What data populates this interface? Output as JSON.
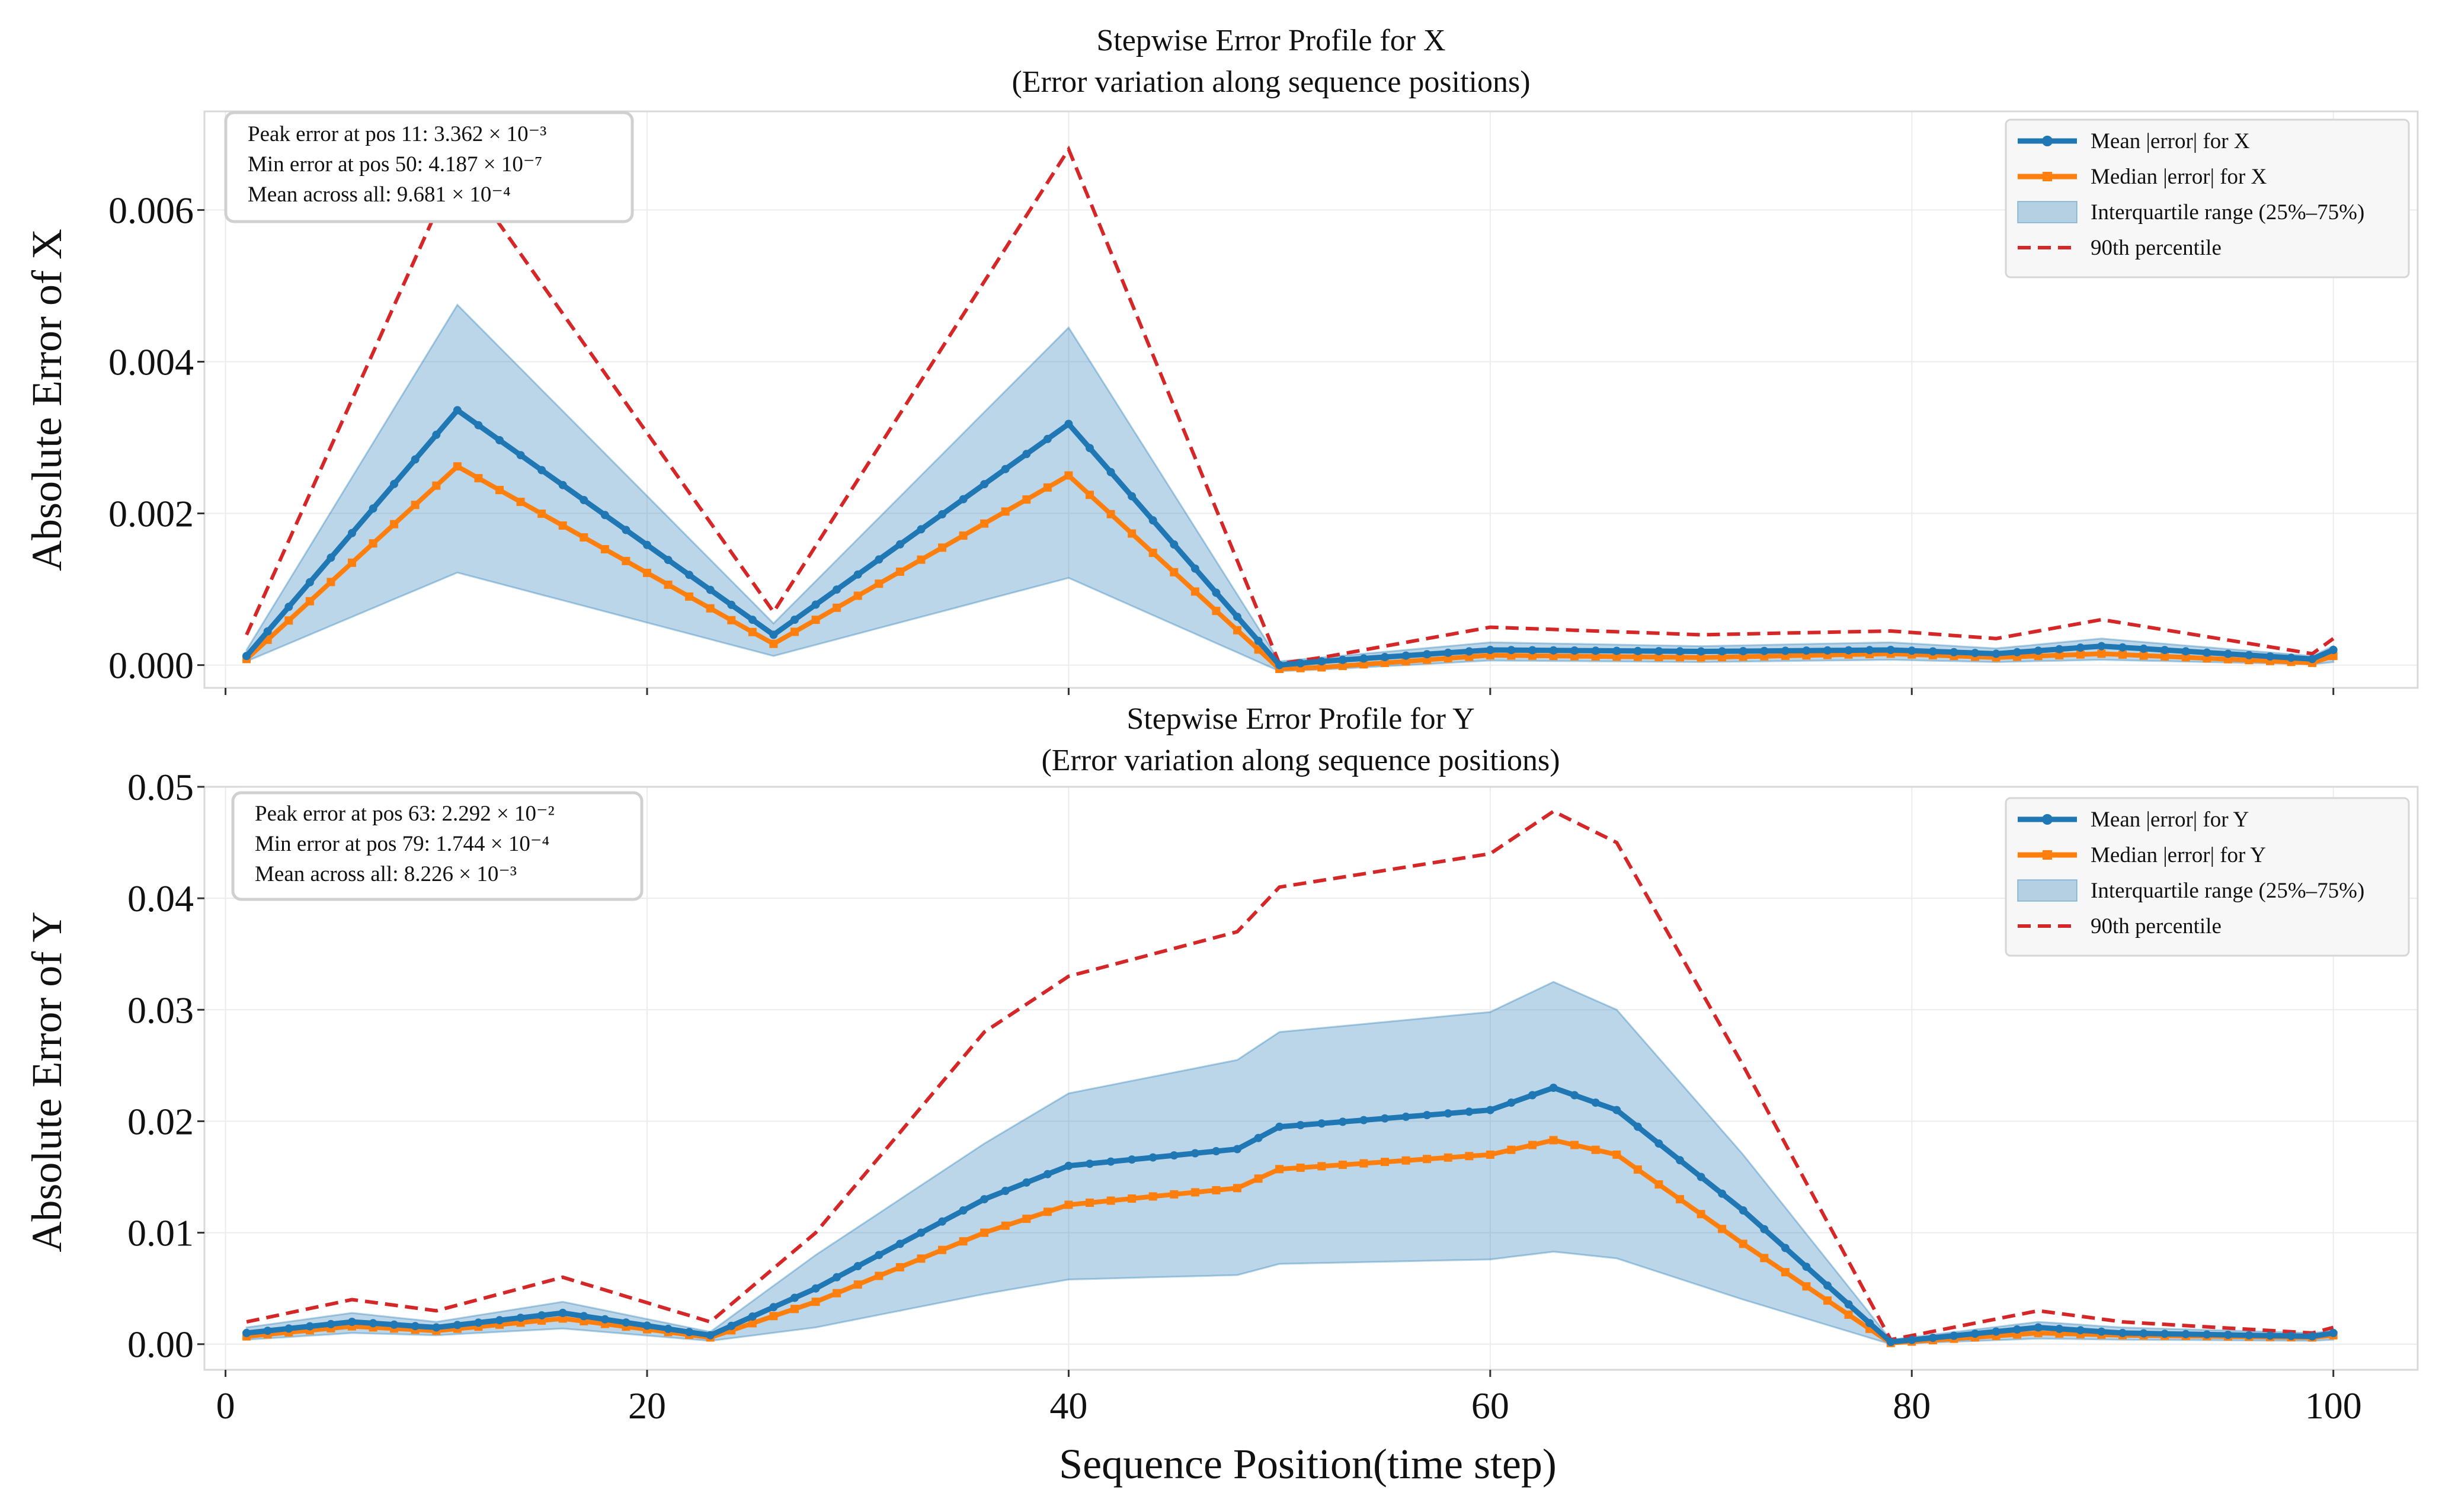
{
  "figure": {
    "xlabel": "Sequence Position(time step)"
  },
  "chart_data": [
    {
      "type": "line",
      "title": "Stepwise Error Profile for X",
      "subtitle": "(Error variation along sequence positions)",
      "xlabel": "",
      "ylabel": "Absolute Error of X",
      "xlim": [
        -1,
        104
      ],
      "ylim": [
        -0.0003,
        0.0073
      ],
      "xticks": [
        0,
        20,
        40,
        60,
        80,
        100
      ],
      "xtick_labels": [
        "",
        "",
        "",
        "",
        "",
        ""
      ],
      "yticks": [
        0,
        0.002,
        0.004,
        0.006
      ],
      "ytick_labels": [
        "0.000",
        "0.002",
        "0.004",
        "0.006"
      ],
      "grid": true,
      "legend_position": "top-right",
      "legend": [
        "Mean |error| for X",
        "Median |error| for X",
        "Interquartile range (25%–75%)",
        "90th percentile"
      ],
      "annotation": [
        "Peak error at pos 11: 3.362 × 10⁻³",
        "Min error at pos 50: 4.187 × 10⁻⁷",
        "Mean across all: 9.681 × 10⁻⁴"
      ],
      "x_knots": [
        1,
        11,
        26,
        40,
        50,
        52,
        60,
        70,
        79,
        84,
        89,
        99,
        100
      ],
      "series": [
        {
          "name": "Mean |error| for X",
          "color": "#1f77b4",
          "values": [
            0.00012,
            0.00336,
            0.0004,
            0.00318,
            4e-07,
            5e-05,
            0.0002,
            0.00018,
            0.0002,
            0.00015,
            0.00025,
            8e-05,
            0.0002
          ]
        },
        {
          "name": "Median |error| for X",
          "color": "#ff7f0e",
          "values": [
            8e-05,
            0.00262,
            0.00028,
            0.0025,
            -5e-05,
            -3e-05,
            0.00013,
            0.0001,
            0.00015,
            0.0001,
            0.00015,
            3e-05,
            0.00012
          ]
        },
        {
          "name": "IQR low",
          "values": [
            5e-05,
            0.00122,
            0.00012,
            0.00115,
            -8e-05,
            -6e-05,
            6e-05,
            4e-05,
            7e-05,
            4e-05,
            7e-05,
            1e-05,
            4e-05
          ]
        },
        {
          "name": "IQR high",
          "values": [
            0.0002,
            0.00475,
            0.00055,
            0.00445,
            5e-05,
            0.0001,
            0.0003,
            0.00025,
            0.0003,
            0.00022,
            0.00035,
            0.00012,
            0.00025
          ]
        },
        {
          "name": "90th percentile",
          "color": "#d62728",
          "values": [
            0.0004,
            0.0066,
            0.0007,
            0.0068,
            2e-05,
            0.0001,
            0.0005,
            0.0004,
            0.00045,
            0.00035,
            0.0006,
            0.00015,
            0.00035
          ]
        }
      ]
    },
    {
      "type": "line",
      "title": "Stepwise Error Profile for Y",
      "subtitle": "(Error variation along sequence positions)",
      "xlabel": "Sequence Position(time step)",
      "ylabel": "Absolute Error of Y",
      "xlim": [
        -1,
        104
      ],
      "ylim": [
        -0.0023,
        0.05
      ],
      "xticks": [
        0,
        20,
        40,
        60,
        80,
        100
      ],
      "xtick_labels": [
        "0",
        "20",
        "40",
        "60",
        "80",
        "100"
      ],
      "yticks": [
        0,
        0.01,
        0.02,
        0.03,
        0.04,
        0.05
      ],
      "ytick_labels": [
        "0.00",
        "0.01",
        "0.02",
        "0.03",
        "0.04",
        "0.05"
      ],
      "grid": true,
      "legend_position": "top-right",
      "legend": [
        "Mean |error| for Y",
        "Median |error| for Y",
        "Interquartile range (25%–75%)",
        "90th percentile"
      ],
      "annotation": [
        "Peak error at pos 63: 2.292 × 10⁻²",
        "Min error at pos 79: 1.744 × 10⁻⁴",
        "Mean across all: 8.226 × 10⁻³"
      ],
      "x_knots": [
        1,
        6,
        10,
        16,
        23,
        28,
        36,
        40,
        48,
        50,
        60,
        63,
        66,
        72,
        79,
        86,
        90,
        99,
        100
      ],
      "series": [
        {
          "name": "Mean |error| for Y",
          "color": "#1f77b4",
          "values": [
            0.001,
            0.002,
            0.0015,
            0.0028,
            0.0008,
            0.005,
            0.013,
            0.016,
            0.0175,
            0.0195,
            0.021,
            0.023,
            0.021,
            0.012,
            0.0002,
            0.0015,
            0.001,
            0.0007,
            0.001
          ]
        },
        {
          "name": "Median |error| for Y",
          "color": "#ff7f0e",
          "values": [
            0.0007,
            0.0016,
            0.0012,
            0.0023,
            0.0006,
            0.0038,
            0.01,
            0.0125,
            0.014,
            0.0157,
            0.017,
            0.0183,
            0.017,
            0.009,
            0.0001,
            0.001,
            0.0008,
            0.0006,
            0.0008
          ]
        },
        {
          "name": "IQR low",
          "values": [
            0.0004,
            0.001,
            0.0008,
            0.0014,
            0.0003,
            0.0015,
            0.0045,
            0.0058,
            0.0062,
            0.0072,
            0.0076,
            0.0083,
            0.0077,
            0.004,
            0.0,
            0.0005,
            0.0004,
            0.0003,
            0.0004
          ]
        },
        {
          "name": "IQR high",
          "values": [
            0.0015,
            0.0028,
            0.002,
            0.0038,
            0.0011,
            0.008,
            0.018,
            0.0225,
            0.0255,
            0.028,
            0.0298,
            0.0325,
            0.03,
            0.017,
            0.0004,
            0.002,
            0.0015,
            0.001,
            0.0012
          ]
        },
        {
          "name": "90th percentile",
          "color": "#d62728",
          "values": [
            0.002,
            0.004,
            0.003,
            0.006,
            0.002,
            0.01,
            0.028,
            0.033,
            0.037,
            0.041,
            0.044,
            0.0478,
            0.045,
            0.025,
            0.0004,
            0.003,
            0.002,
            0.001,
            0.0015
          ]
        }
      ]
    }
  ]
}
